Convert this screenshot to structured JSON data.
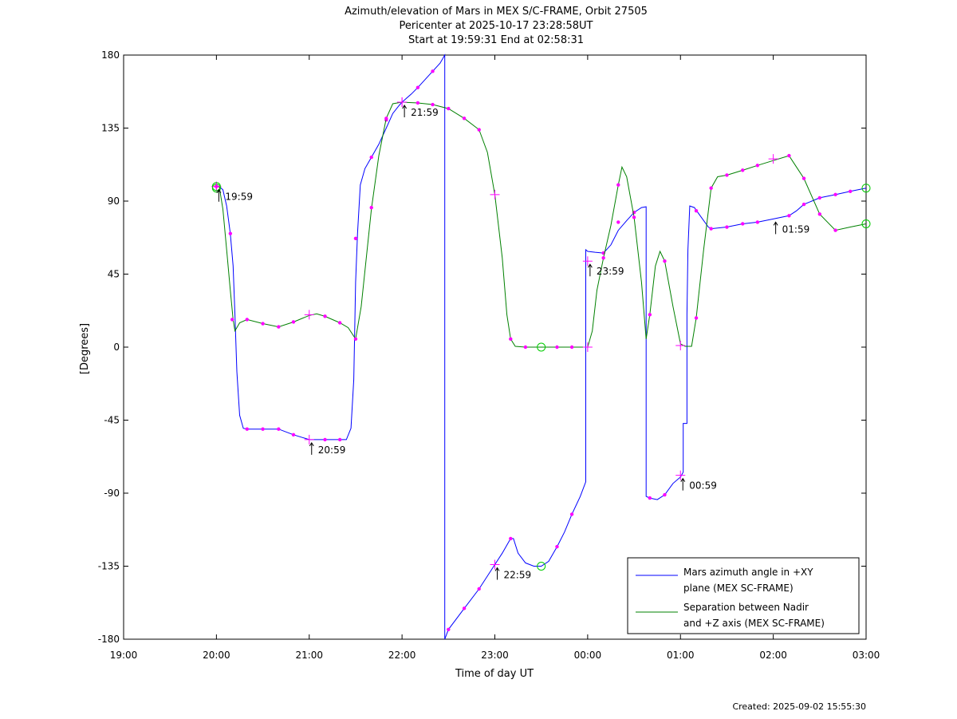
{
  "title_lines": [
    "Azimuth/elevation of Mars in MEX S/C-FRAME,  Orbit 27505",
    "Pericenter at 2025-10-17 23:28:58UT",
    "Start at 19:59:31 End at 02:58:31"
  ],
  "footer": "Created: 2025-09-02 15:55:30",
  "colors": {
    "azimuth": "#0000ff",
    "separation": "#008000",
    "marker": "#ff00ff",
    "endpoint": "#00cc00"
  },
  "chart_data": {
    "type": "line",
    "xlabel": "Time of day UT",
    "ylabel": "[Degrees]",
    "x_unit": "hours since 19:00",
    "xlim": [
      0,
      8
    ],
    "ylim": [
      -180,
      180
    ],
    "x_ticks": [
      {
        "v": 0,
        "label": "19:00"
      },
      {
        "v": 1,
        "label": "20:00"
      },
      {
        "v": 2,
        "label": "21:00"
      },
      {
        "v": 3,
        "label": "22:00"
      },
      {
        "v": 4,
        "label": "23:00"
      },
      {
        "v": 5,
        "label": "00:00"
      },
      {
        "v": 6,
        "label": "01:00"
      },
      {
        "v": 7,
        "label": "02:00"
      },
      {
        "v": 8,
        "label": "03:00"
      }
    ],
    "y_ticks": [
      {
        "v": 180,
        "label": "180"
      },
      {
        "v": 135,
        "label": "135"
      },
      {
        "v": 90,
        "label": "90"
      },
      {
        "v": 45,
        "label": "45"
      },
      {
        "v": 0,
        "label": "0"
      },
      {
        "v": -45,
        "label": "-45"
      },
      {
        "v": -90,
        "label": "-90"
      },
      {
        "v": -135,
        "label": "-135"
      },
      {
        "v": -180,
        "label": "-180"
      }
    ],
    "legend_position": "bottom-right",
    "series": [
      {
        "name": "Mars azimuth angle in +XY plane (MEX SC-FRAME)",
        "legend_lines": [
          "Mars azimuth angle in +XY",
          "plane (MEX SC-FRAME)"
        ],
        "color": "#0000ff",
        "points": [
          [
            0.99,
            99
          ],
          [
            1.03,
            99
          ],
          [
            1.07,
            97
          ],
          [
            1.11,
            87
          ],
          [
            1.15,
            70
          ],
          [
            1.18,
            50
          ],
          [
            1.2,
            20
          ],
          [
            1.22,
            -15
          ],
          [
            1.25,
            -42
          ],
          [
            1.29,
            -50
          ],
          [
            1.33,
            -50.5
          ],
          [
            1.5,
            -50.5
          ],
          [
            1.67,
            -50.5
          ],
          [
            1.83,
            -54
          ],
          [
            2.0,
            -57
          ],
          [
            2.17,
            -57
          ],
          [
            2.33,
            -57
          ],
          [
            2.4,
            -57
          ],
          [
            2.45,
            -50
          ],
          [
            2.48,
            -20
          ],
          [
            2.5,
            40
          ],
          [
            2.52,
            70
          ],
          [
            2.55,
            100
          ],
          [
            2.6,
            110
          ],
          [
            2.67,
            117
          ],
          [
            2.75,
            125
          ],
          [
            2.83,
            135
          ],
          [
            2.9,
            144
          ],
          [
            2.97,
            149
          ],
          [
            3.0,
            151
          ],
          [
            3.1,
            156
          ],
          [
            3.17,
            160
          ],
          [
            3.33,
            170
          ],
          [
            3.41,
            175
          ],
          [
            3.46,
            180
          ],
          [
            3.46,
            -180
          ],
          [
            3.5,
            -174
          ],
          [
            3.67,
            -161
          ],
          [
            3.83,
            -149
          ],
          [
            4.0,
            -134
          ],
          [
            4.08,
            -127
          ],
          [
            4.17,
            -118
          ],
          [
            4.2,
            -118
          ],
          [
            4.25,
            -127
          ],
          [
            4.33,
            -133
          ],
          [
            4.42,
            -135
          ],
          [
            4.5,
            -135
          ],
          [
            4.58,
            -132
          ],
          [
            4.67,
            -123
          ],
          [
            4.75,
            -114
          ],
          [
            4.83,
            -103
          ],
          [
            4.92,
            -92
          ],
          [
            4.98,
            -83
          ],
          [
            4.98,
            60
          ],
          [
            5.0,
            59
          ],
          [
            5.08,
            58.5
          ],
          [
            5.17,
            58
          ],
          [
            5.25,
            63
          ],
          [
            5.33,
            72
          ],
          [
            5.42,
            78
          ],
          [
            5.5,
            83
          ],
          [
            5.58,
            86
          ],
          [
            5.63,
            86.5
          ],
          [
            5.63,
            -92
          ],
          [
            5.67,
            -93
          ],
          [
            5.75,
            -94
          ],
          [
            5.83,
            -91
          ],
          [
            5.92,
            -84
          ],
          [
            6.0,
            -80
          ],
          [
            6.03,
            -77
          ],
          [
            6.03,
            -47
          ],
          [
            6.07,
            -47
          ],
          [
            6.07,
            20
          ],
          [
            6.08,
            60
          ],
          [
            6.1,
            87
          ],
          [
            6.15,
            86
          ],
          [
            6.2,
            82
          ],
          [
            6.3,
            74
          ],
          [
            6.33,
            73
          ],
          [
            6.5,
            74
          ],
          [
            6.67,
            76
          ],
          [
            6.83,
            77
          ],
          [
            7.0,
            79
          ],
          [
            7.17,
            81
          ],
          [
            7.25,
            84
          ],
          [
            7.33,
            88
          ],
          [
            7.5,
            92
          ],
          [
            7.67,
            94
          ],
          [
            7.83,
            96
          ],
          [
            8.0,
            98
          ]
        ],
        "markers": [
          [
            1.0,
            99
          ],
          [
            1.15,
            70
          ],
          [
            1.33,
            -50.5
          ],
          [
            1.5,
            -50.5
          ],
          [
            1.67,
            -50.5
          ],
          [
            1.83,
            -54
          ],
          [
            2.17,
            -57
          ],
          [
            2.33,
            -57
          ],
          [
            2.5,
            67
          ],
          [
            2.67,
            117
          ],
          [
            2.83,
            140
          ],
          [
            3.17,
            160
          ],
          [
            3.33,
            170
          ],
          [
            3.5,
            -174
          ],
          [
            3.67,
            -161
          ],
          [
            3.83,
            -149
          ],
          [
            4.17,
            -118
          ],
          [
            4.67,
            -123
          ],
          [
            4.83,
            -103
          ],
          [
            5.17,
            58
          ],
          [
            5.33,
            77
          ],
          [
            5.5,
            83
          ],
          [
            5.67,
            -93
          ],
          [
            5.83,
            -91
          ],
          [
            6.17,
            84
          ],
          [
            6.33,
            73
          ],
          [
            6.5,
            74
          ],
          [
            6.67,
            76
          ],
          [
            6.83,
            77
          ],
          [
            7.17,
            81
          ],
          [
            7.33,
            88
          ],
          [
            7.5,
            92
          ],
          [
            7.67,
            94
          ],
          [
            7.83,
            96
          ]
        ],
        "crosses": [
          [
            1.0,
            99
          ],
          [
            2.0,
            -57
          ],
          [
            3.0,
            151
          ],
          [
            4.0,
            -134
          ],
          [
            5.0,
            53
          ],
          [
            6.0,
            -79
          ]
        ],
        "circles": [
          [
            1.0,
            98
          ],
          [
            4.5,
            -135
          ],
          [
            8.0,
            98
          ]
        ]
      },
      {
        "name": "Separation between Nadir and +Z axis (MEX SC-FRAME)",
        "legend_lines": [
          "Separation between Nadir",
          "and +Z axis (MEX SC-FRAME)"
        ],
        "color": "#008000",
        "points": [
          [
            0.99,
            99
          ],
          [
            1.03,
            99
          ],
          [
            1.07,
            85
          ],
          [
            1.11,
            60
          ],
          [
            1.15,
            35
          ],
          [
            1.18,
            17
          ],
          [
            1.2,
            10
          ],
          [
            1.25,
            15
          ],
          [
            1.33,
            17
          ],
          [
            1.5,
            14.5
          ],
          [
            1.67,
            12.5
          ],
          [
            1.83,
            15.5
          ],
          [
            2.0,
            19.5
          ],
          [
            2.08,
            20.5
          ],
          [
            2.17,
            19
          ],
          [
            2.33,
            15
          ],
          [
            2.42,
            12
          ],
          [
            2.5,
            5
          ],
          [
            2.56,
            25
          ],
          [
            2.67,
            85
          ],
          [
            2.75,
            118
          ],
          [
            2.83,
            141
          ],
          [
            2.9,
            150
          ],
          [
            3.0,
            151
          ],
          [
            3.17,
            150.5
          ],
          [
            3.33,
            149.5
          ],
          [
            3.5,
            147
          ],
          [
            3.67,
            141
          ],
          [
            3.83,
            134
          ],
          [
            3.92,
            120
          ],
          [
            4.0,
            94
          ],
          [
            4.08,
            55
          ],
          [
            4.13,
            20
          ],
          [
            4.17,
            5
          ],
          [
            4.22,
            0.5
          ],
          [
            4.33,
            0
          ],
          [
            4.5,
            0
          ],
          [
            4.67,
            0
          ],
          [
            4.83,
            0
          ],
          [
            5.0,
            0
          ],
          [
            5.05,
            10
          ],
          [
            5.1,
            35
          ],
          [
            5.17,
            55
          ],
          [
            5.25,
            75
          ],
          [
            5.33,
            100
          ],
          [
            5.37,
            111
          ],
          [
            5.42,
            105
          ],
          [
            5.5,
            80
          ],
          [
            5.58,
            40
          ],
          [
            5.63,
            5
          ],
          [
            5.67,
            20
          ],
          [
            5.73,
            50
          ],
          [
            5.78,
            59
          ],
          [
            5.83,
            53
          ],
          [
            5.92,
            25
          ],
          [
            6.0,
            2
          ],
          [
            6.05,
            0.5
          ],
          [
            6.12,
            0.5
          ],
          [
            6.17,
            18
          ],
          [
            6.25,
            60
          ],
          [
            6.33,
            98
          ],
          [
            6.4,
            105
          ],
          [
            6.5,
            106
          ],
          [
            6.67,
            109
          ],
          [
            6.83,
            112
          ],
          [
            7.0,
            115
          ],
          [
            7.17,
            118
          ],
          [
            7.25,
            111
          ],
          [
            7.33,
            104
          ],
          [
            7.5,
            82
          ],
          [
            7.67,
            72
          ],
          [
            7.83,
            74
          ],
          [
            8.0,
            76
          ]
        ],
        "markers": [
          [
            1.0,
            99
          ],
          [
            1.17,
            17
          ],
          [
            1.33,
            17
          ],
          [
            1.5,
            14.5
          ],
          [
            1.67,
            12.5
          ],
          [
            1.83,
            15.5
          ],
          [
            2.17,
            19
          ],
          [
            2.33,
            15
          ],
          [
            2.5,
            5
          ],
          [
            2.67,
            86
          ],
          [
            2.83,
            141
          ],
          [
            3.17,
            150.5
          ],
          [
            3.33,
            149.5
          ],
          [
            3.5,
            147
          ],
          [
            3.67,
            141
          ],
          [
            3.83,
            134
          ],
          [
            4.17,
            5
          ],
          [
            4.33,
            0
          ],
          [
            4.67,
            0
          ],
          [
            4.83,
            0
          ],
          [
            5.17,
            55
          ],
          [
            5.33,
            100
          ],
          [
            5.5,
            80
          ],
          [
            5.67,
            20
          ],
          [
            5.83,
            53
          ],
          [
            6.17,
            18
          ],
          [
            6.33,
            98
          ],
          [
            6.5,
            106
          ],
          [
            6.67,
            109
          ],
          [
            6.83,
            112
          ],
          [
            7.17,
            118
          ],
          [
            7.33,
            104
          ],
          [
            7.5,
            82
          ],
          [
            7.67,
            72
          ]
        ],
        "crosses": [
          [
            1.0,
            99
          ],
          [
            2.0,
            20
          ],
          [
            3.0,
            151
          ],
          [
            4.0,
            94
          ],
          [
            5.0,
            0
          ],
          [
            6.0,
            1
          ],
          [
            7.0,
            116
          ]
        ],
        "circles": [
          [
            1.0,
            99
          ],
          [
            4.5,
            0
          ],
          [
            8.0,
            76
          ]
        ]
      }
    ],
    "annotations": [
      {
        "x": 1.0,
        "y": 99,
        "label": "19:59"
      },
      {
        "x": 2.0,
        "y": -57,
        "label": "20:59"
      },
      {
        "x": 3.0,
        "y": 151,
        "label": "21:59"
      },
      {
        "x": 4.0,
        "y": -134,
        "label": "22:59"
      },
      {
        "x": 5.0,
        "y": 53,
        "label": "23:59"
      },
      {
        "x": 6.0,
        "y": -79,
        "label": "00:59"
      },
      {
        "x": 7.0,
        "y": 79,
        "label": "01:59"
      }
    ]
  }
}
